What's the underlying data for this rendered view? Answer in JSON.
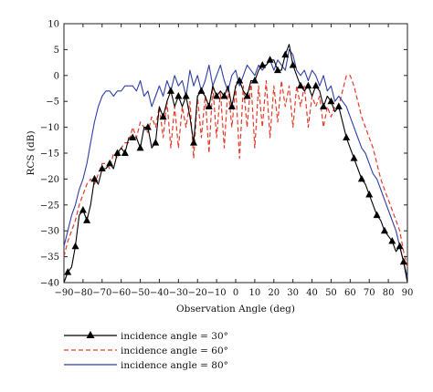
{
  "chart_data": {
    "type": "line",
    "title": "",
    "xlabel": "Observation Angle (deg)",
    "ylabel": "RCS (dB)",
    "xlim": [
      -90,
      90
    ],
    "ylim": [
      -40,
      10
    ],
    "xticks": [
      -90,
      -80,
      -70,
      -60,
      -50,
      -40,
      -30,
      -20,
      -10,
      0,
      10,
      20,
      30,
      40,
      50,
      60,
      70,
      80,
      90
    ],
    "yticks": [
      10,
      5,
      0,
      -5,
      -10,
      -15,
      -20,
      -25,
      -30,
      -35,
      -40
    ],
    "grid": false,
    "legend_position": "bottom-left",
    "series": [
      {
        "name": "incidence angle = 30°",
        "color": "#000000",
        "style": "solid-with-triangles",
        "x": [
          -90,
          -88,
          -86,
          -84,
          -82,
          -80,
          -78,
          -76,
          -74,
          -72,
          -70,
          -68,
          -66,
          -64,
          -62,
          -60,
          -58,
          -56,
          -54,
          -52,
          -50,
          -48,
          -46,
          -44,
          -42,
          -40,
          -38,
          -36,
          -34,
          -32,
          -30,
          -28,
          -26,
          -24,
          -22,
          -20,
          -18,
          -16,
          -14,
          -12,
          -10,
          -8,
          -6,
          -4,
          -2,
          0,
          2,
          4,
          6,
          8,
          10,
          12,
          14,
          16,
          18,
          20,
          22,
          24,
          26,
          28,
          30,
          32,
          34,
          36,
          38,
          40,
          42,
          44,
          46,
          48,
          50,
          52,
          54,
          56,
          58,
          60,
          62,
          64,
          66,
          68,
          70,
          72,
          74,
          76,
          78,
          80,
          82,
          84,
          86,
          88,
          90
        ],
        "values": [
          -40,
          -38,
          -37,
          -33,
          -27,
          -26,
          -28,
          -25,
          -20,
          -21,
          -18,
          -18,
          -17,
          -18,
          -15,
          -14,
          -15,
          -12,
          -12,
          -12,
          -14,
          -10,
          -10,
          -14,
          -13,
          -6,
          -8,
          -5,
          -3,
          -6,
          -4,
          -6,
          -4,
          -8,
          -13,
          -4,
          -3,
          -4,
          -6,
          -2,
          -4,
          -3,
          -4,
          -2,
          -6,
          -2,
          -1,
          -3,
          -4,
          -1,
          -1,
          1,
          2,
          2,
          3,
          3,
          1,
          1,
          4,
          6,
          2,
          0,
          -2,
          -3,
          -2,
          -4,
          -2,
          -3,
          -6,
          -4,
          -5,
          -7,
          -6,
          -9,
          -12,
          -14,
          -16,
          -18,
          -20,
          -21,
          -23,
          -25,
          -27,
          -28,
          -30,
          -31,
          -32,
          -34,
          -33,
          -36,
          -40
        ],
        "markers_x": [
          -88,
          -84,
          -80,
          -78,
          -74,
          -70,
          -66,
          -62,
          -58,
          -54,
          -50,
          -46,
          -42,
          -38,
          -34,
          -30,
          -26,
          -22,
          -18,
          -14,
          -10,
          -6,
          -2,
          2,
          6,
          10,
          14,
          18,
          22,
          26,
          30,
          34,
          38,
          42,
          46,
          50,
          54,
          58,
          62,
          66,
          70,
          74,
          78,
          82,
          86,
          88
        ],
        "markers_y": [
          -38,
          -33,
          -26,
          -28,
          -20,
          -18,
          -17,
          -15,
          -15,
          -12,
          -14,
          -10,
          -13,
          -8,
          -3,
          -4,
          -4,
          -13,
          -3,
          -6,
          -4,
          -4,
          -6,
          -1,
          -4,
          -1,
          2,
          3,
          1,
          4,
          2,
          -2,
          -2,
          -2,
          -6,
          -5,
          -6,
          -12,
          -16,
          -20,
          -23,
          -27,
          -30,
          -32,
          -33,
          -36
        ]
      },
      {
        "name": "incidence angle = 60°",
        "color": "#e53a2a",
        "style": "dashed",
        "x": [
          -90,
          -88,
          -86,
          -84,
          -82,
          -80,
          -78,
          -76,
          -74,
          -72,
          -70,
          -68,
          -66,
          -64,
          -62,
          -60,
          -58,
          -56,
          -54,
          -52,
          -50,
          -48,
          -46,
          -44,
          -42,
          -40,
          -38,
          -36,
          -34,
          -32,
          -30,
          -28,
          -26,
          -24,
          -22,
          -20,
          -18,
          -16,
          -14,
          -12,
          -10,
          -8,
          -6,
          -4,
          -2,
          0,
          2,
          4,
          6,
          8,
          10,
          12,
          14,
          16,
          18,
          20,
          22,
          24,
          26,
          28,
          30,
          32,
          34,
          36,
          38,
          40,
          42,
          44,
          46,
          48,
          50,
          52,
          54,
          56,
          58,
          60,
          62,
          64,
          66,
          68,
          70,
          72,
          74,
          76,
          78,
          80,
          82,
          84,
          86,
          88,
          90
        ],
        "values": [
          -35,
          -32,
          -30,
          -28,
          -25,
          -23,
          -21,
          -20,
          -21,
          -19,
          -17,
          -17,
          -18,
          -15,
          -16,
          -14,
          -13,
          -13,
          -10,
          -12,
          -9,
          -10,
          -11,
          -8,
          -10,
          -6,
          -12,
          -5,
          -14,
          -6,
          -14,
          -6,
          -10,
          -5,
          -16,
          -4,
          -12,
          -4,
          -15,
          -2,
          -12,
          -3,
          -14,
          -2,
          -10,
          -2,
          -16,
          -2,
          -10,
          -1,
          -14,
          -2,
          -10,
          -1,
          -12,
          -2,
          -9,
          -1,
          -6,
          -2,
          -10,
          -2,
          -6,
          -2,
          -10,
          -4,
          -6,
          -4,
          -10,
          -6,
          -8,
          -6,
          -6,
          -3,
          0,
          0,
          -2,
          -5,
          -8,
          -10,
          -12,
          -14,
          -17,
          -20,
          -22,
          -24,
          -26,
          -28,
          -30,
          -34,
          -37
        ]
      },
      {
        "name": "incidence angle = 80°",
        "color": "#2f3fa6",
        "style": "solid",
        "x": [
          -90,
          -88,
          -86,
          -84,
          -82,
          -80,
          -78,
          -76,
          -74,
          -72,
          -70,
          -68,
          -66,
          -64,
          -62,
          -60,
          -58,
          -56,
          -54,
          -52,
          -50,
          -48,
          -46,
          -44,
          -42,
          -40,
          -38,
          -36,
          -34,
          -32,
          -30,
          -28,
          -26,
          -24,
          -22,
          -20,
          -18,
          -16,
          -14,
          -12,
          -10,
          -8,
          -6,
          -4,
          -2,
          0,
          2,
          4,
          6,
          8,
          10,
          12,
          14,
          16,
          18,
          20,
          22,
          24,
          26,
          28,
          30,
          32,
          34,
          36,
          38,
          40,
          42,
          44,
          46,
          48,
          50,
          52,
          54,
          56,
          58,
          60,
          62,
          64,
          66,
          68,
          70,
          72,
          74,
          76,
          78,
          80,
          82,
          84,
          86,
          88,
          90
        ],
        "values": [
          -33,
          -30,
          -27,
          -25,
          -22,
          -20,
          -17,
          -13,
          -9,
          -6,
          -4,
          -3,
          -3,
          -4,
          -3,
          -3,
          -2,
          -2,
          -2,
          -3,
          -1,
          -4,
          -3,
          -6,
          -4,
          -2,
          -4,
          -1,
          -3,
          0,
          -2,
          -1,
          -4,
          1,
          -2,
          0,
          -3,
          -1,
          2,
          -2,
          0,
          2,
          -1,
          -3,
          0,
          1,
          -2,
          0,
          2,
          1,
          0,
          2,
          1,
          2,
          3,
          1,
          3,
          2,
          1,
          5,
          4,
          1,
          0,
          1,
          -1,
          1,
          0,
          -2,
          0,
          -3,
          -2,
          -5,
          -4,
          -5,
          -6,
          -8,
          -10,
          -12,
          -14,
          -15,
          -17,
          -19,
          -20,
          -22,
          -24,
          -26,
          -28,
          -30,
          -33,
          -36,
          -39
        ]
      }
    ]
  }
}
